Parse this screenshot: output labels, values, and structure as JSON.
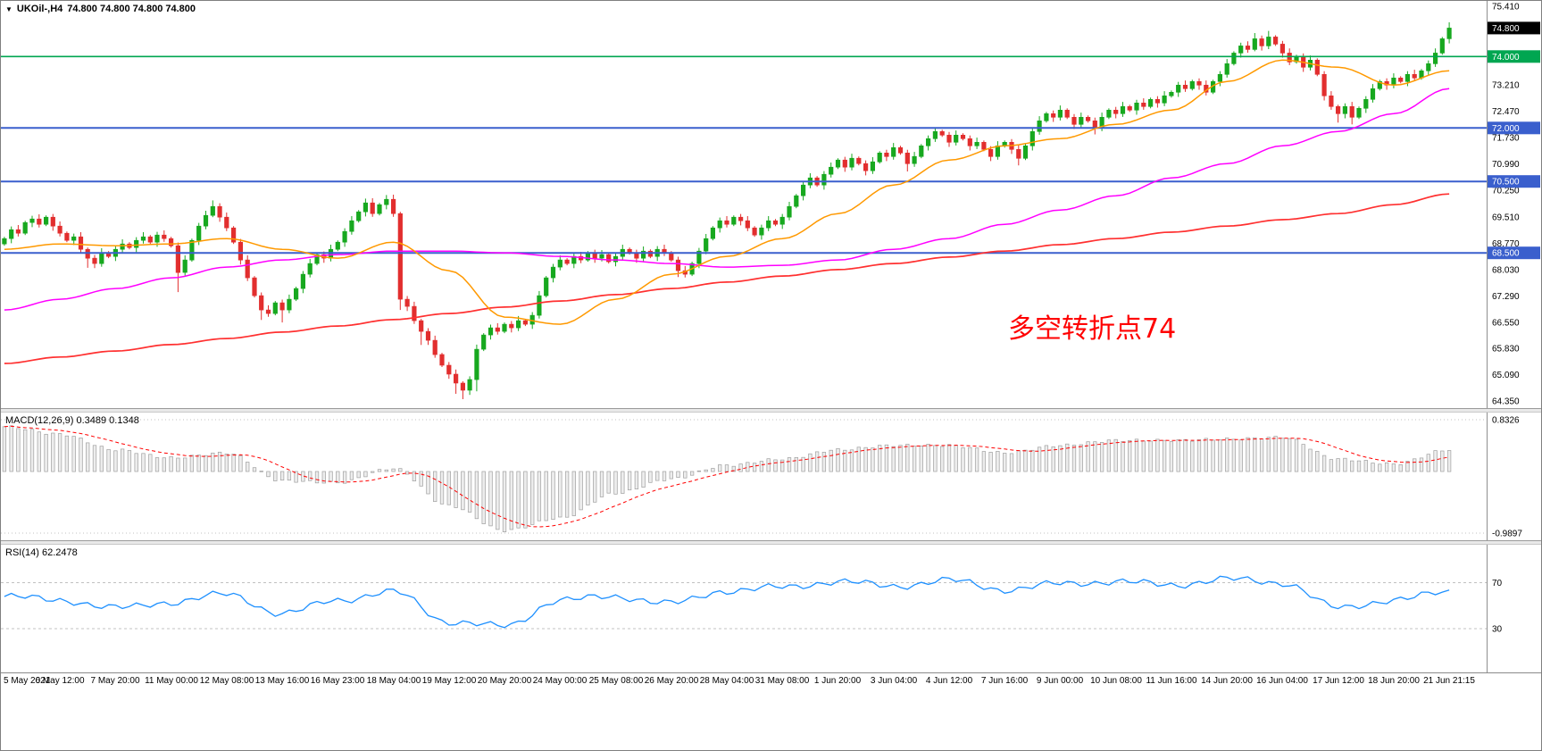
{
  "title_bar": {
    "dropdown_icon": "▼",
    "symbol_period": "UKOil-,H4",
    "quotes": "74.800 74.800 74.800 74.800"
  },
  "annotation": {
    "text": "多空转折点74",
    "color": "#ff0000"
  },
  "macd_panel": {
    "title": "MACD(12,26,9) 0.3489 0.1348",
    "upper_label": "0.8326",
    "lower_label": "-0.9897"
  },
  "rsi_panel": {
    "title": "RSI(14) 62.2478",
    "upper_label": "70",
    "lower_label": "30"
  },
  "price_axis": {
    "regular_labels": [
      {
        "text": "75.410",
        "price": 75.41
      },
      {
        "text": "73.210",
        "price": 73.21
      },
      {
        "text": "72.470",
        "price": 72.47
      },
      {
        "text": "71.730",
        "price": 71.73
      },
      {
        "text": "70.990",
        "price": 70.99
      },
      {
        "text": "70.250",
        "price": 70.25
      },
      {
        "text": "69.510",
        "price": 69.51
      },
      {
        "text": "68.770",
        "price": 68.77
      },
      {
        "text": "68.030",
        "price": 68.03
      },
      {
        "text": "67.290",
        "price": 67.29
      },
      {
        "text": "66.550",
        "price": 66.55
      },
      {
        "text": "65.830",
        "price": 65.83
      },
      {
        "text": "65.090",
        "price": 65.09
      },
      {
        "text": "64.350",
        "price": 64.35
      }
    ],
    "current": {
      "text": "74.800",
      "price": 74.8
    },
    "green": {
      "text": "74.000",
      "price": 74.0
    },
    "blue": [
      {
        "text": "72.000",
        "price": 72.0
      },
      {
        "text": "70.500",
        "price": 70.5
      },
      {
        "text": "68.500",
        "price": 68.5
      }
    ]
  },
  "colors": {
    "candle_up": "#17a81f",
    "candle_down": "#e22e2e",
    "ma_fast": "#ff9900",
    "ma_mid": "#ff00ff",
    "ma_slow": "#ff3030",
    "level_green": "#00a651",
    "level_blue": "#3a5fcd",
    "current_price_box": "#000000",
    "macd_bar_fill": "#ededed",
    "macd_bar_stroke": "#9f9f9f",
    "macd_signal": "#ff0000",
    "rsi_line": "#1e90ff",
    "grid_dash": "#c0c0c0"
  },
  "chart_data": [
    {
      "type": "candlestick",
      "title": "UKOil- H4",
      "ylim": [
        64.3,
        75.46
      ],
      "price_grid_spacing": 0.74,
      "x_tick_labels": [
        "5 May 2021",
        "6 May 12:00",
        "7 May 20:00",
        "11 May 00:00",
        "12 May 08:00",
        "13 May 16:00",
        "16 May 23:00",
        "18 May 04:00",
        "19 May 12:00",
        "20 May 20:00",
        "24 May 00:00",
        "25 May 08:00",
        "26 May 20:00",
        "28 May 04:00",
        "31 May 08:00",
        "1 Jun 20:00",
        "3 Jun 04:00",
        "4 Jun 12:00",
        "7 Jun 16:00",
        "9 Jun 00:00",
        "10 Jun 08:00",
        "11 Jun 16:00",
        "14 Jun 20:00",
        "16 Jun 04:00",
        "17 Jun 12:00",
        "18 Jun 20:00",
        "21 Jun 21:15"
      ],
      "open_first": 68.75,
      "closes": [
        68.9,
        69.15,
        69.05,
        69.35,
        69.45,
        69.3,
        69.5,
        69.25,
        69.05,
        68.85,
        68.95,
        68.6,
        68.35,
        68.2,
        68.5,
        68.4,
        68.6,
        68.75,
        68.65,
        68.85,
        68.95,
        68.8,
        69.0,
        68.9,
        68.7,
        67.95,
        68.3,
        68.85,
        69.25,
        69.55,
        69.8,
        69.5,
        69.2,
        68.8,
        68.3,
        67.8,
        67.3,
        66.9,
        66.8,
        67.1,
        66.9,
        67.2,
        67.5,
        67.9,
        68.2,
        68.45,
        68.35,
        68.6,
        68.8,
        69.1,
        69.4,
        69.65,
        69.9,
        69.6,
        69.85,
        70.0,
        69.6,
        67.2,
        67.0,
        66.6,
        66.3,
        66.05,
        65.65,
        65.35,
        65.1,
        64.85,
        64.65,
        64.95,
        65.8,
        66.2,
        66.4,
        66.3,
        66.5,
        66.4,
        66.6,
        66.5,
        66.75,
        67.3,
        67.8,
        68.1,
        68.3,
        68.2,
        68.4,
        68.3,
        68.5,
        68.35,
        68.45,
        68.25,
        68.4,
        68.6,
        68.5,
        68.35,
        68.55,
        68.4,
        68.6,
        68.5,
        68.3,
        68.0,
        67.9,
        68.2,
        68.55,
        68.9,
        69.2,
        69.4,
        69.3,
        69.5,
        69.4,
        69.2,
        69.0,
        69.2,
        69.4,
        69.3,
        69.5,
        69.8,
        70.1,
        70.4,
        70.6,
        70.4,
        70.7,
        70.9,
        71.1,
        70.9,
        71.15,
        71.0,
        70.8,
        71.05,
        71.3,
        71.2,
        71.45,
        71.3,
        71.0,
        71.2,
        71.5,
        71.7,
        71.9,
        71.8,
        71.6,
        71.8,
        71.7,
        71.5,
        71.6,
        71.4,
        71.2,
        71.5,
        71.6,
        71.4,
        71.15,
        71.5,
        71.9,
        72.2,
        72.4,
        72.3,
        72.5,
        72.3,
        72.1,
        72.3,
        72.2,
        72.0,
        72.3,
        72.5,
        72.4,
        72.6,
        72.5,
        72.7,
        72.6,
        72.8,
        72.7,
        72.9,
        73.0,
        73.2,
        73.1,
        73.3,
        73.2,
        73.0,
        73.3,
        73.5,
        73.8,
        74.1,
        74.3,
        74.2,
        74.5,
        74.3,
        74.55,
        74.35,
        74.1,
        73.85,
        74.0,
        73.7,
        73.9,
        73.5,
        72.9,
        72.6,
        72.4,
        72.6,
        72.3,
        72.55,
        72.8,
        73.1,
        73.3,
        73.2,
        73.4,
        73.3,
        73.5,
        73.4,
        73.6,
        73.8,
        74.1,
        74.5,
        74.8
      ],
      "wick_high": {
        "30": 69.97,
        "52": 70.02,
        "55": 70.12,
        "134": 72.02,
        "180": 74.66,
        "182": 74.72,
        "208": 74.96
      },
      "wick_low": {
        "12": 68.08,
        "25": 67.4,
        "37": 66.62,
        "40": 66.55,
        "57": 66.9,
        "60": 65.92,
        "65": 64.55,
        "66": 64.4,
        "68": 64.62,
        "97": 67.82,
        "130": 70.78,
        "146": 70.95,
        "157": 71.82,
        "192": 72.15,
        "194": 72.1
      },
      "moving_averages": {
        "fast_orange": {
          "sample_step": 8,
          "values": [
            68.6,
            68.75,
            68.7,
            68.75,
            68.9,
            68.6,
            68.35,
            68.8,
            68.0,
            66.7,
            66.5,
            67.2,
            67.9,
            68.4,
            68.9,
            69.6,
            70.4,
            71.1,
            71.5,
            71.7,
            72.1,
            72.5,
            73.3,
            73.9,
            73.7,
            73.2,
            73.6
          ]
        },
        "mid_magenta": {
          "sample_step": 8,
          "values": [
            66.9,
            67.2,
            67.5,
            67.8,
            68.1,
            68.3,
            68.45,
            68.55,
            68.55,
            68.5,
            68.4,
            68.3,
            68.2,
            68.1,
            68.15,
            68.3,
            68.6,
            68.9,
            69.3,
            69.7,
            70.1,
            70.6,
            71.0,
            71.5,
            71.9,
            72.4,
            73.1
          ]
        },
        "slow_red": {
          "sample_step": 8,
          "values": [
            65.4,
            65.58,
            65.75,
            65.93,
            66.1,
            66.28,
            66.45,
            66.63,
            66.8,
            66.98,
            67.15,
            67.33,
            67.5,
            67.68,
            67.85,
            68.03,
            68.2,
            68.38,
            68.55,
            68.73,
            68.9,
            69.08,
            69.25,
            69.43,
            69.6,
            69.85,
            70.15
          ]
        }
      },
      "levels": {
        "current_price": 74.8,
        "green_line": 74.0,
        "blue_lines": [
          72.0,
          70.5,
          68.5
        ]
      }
    },
    {
      "type": "macd_histogram",
      "name": "MACD(12,26,9)",
      "current_values": [
        0.3489,
        0.1348
      ],
      "ylim": [
        -0.9897,
        0.8326
      ],
      "sample_step": 8,
      "values": [
        0.72,
        0.6,
        0.35,
        0.22,
        0.3,
        -0.15,
        -0.18,
        0.05,
        -0.55,
        -0.95,
        -0.75,
        -0.35,
        -0.12,
        0.1,
        0.2,
        0.35,
        0.42,
        0.42,
        0.3,
        0.42,
        0.5,
        0.5,
        0.52,
        0.55,
        0.2,
        0.12,
        0.35
      ]
    },
    {
      "type": "line",
      "name": "RSI(14)",
      "current_value": 62.2478,
      "levels": [
        70,
        30
      ],
      "scale_hint": [
        -8,
        103
      ],
      "sample_step": 8,
      "values": [
        58,
        55,
        48,
        53,
        60,
        43,
        55,
        62,
        36,
        32,
        55,
        58,
        52,
        63,
        66,
        71,
        67,
        72,
        64,
        69,
        71,
        68,
        73,
        70,
        48,
        55,
        62
      ]
    }
  ]
}
